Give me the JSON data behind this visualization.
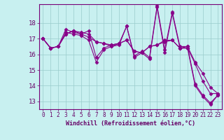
{
  "xlabel": "Windchill (Refroidissement éolien,°C)",
  "background_color": "#c8f0f0",
  "line_color": "#880088",
  "grid_color": "#99cccc",
  "x_values": [
    0,
    1,
    2,
    3,
    4,
    5,
    6,
    7,
    8,
    9,
    10,
    11,
    12,
    13,
    14,
    15,
    16,
    17,
    18,
    19,
    20,
    21,
    22,
    23
  ],
  "series": [
    [
      17.0,
      16.4,
      16.5,
      17.4,
      17.3,
      17.2,
      16.9,
      15.5,
      16.3,
      16.5,
      16.6,
      17.8,
      15.8,
      16.1,
      15.7,
      19.0,
      16.1,
      18.6,
      16.4,
      16.4,
      14.0,
      13.3,
      12.8,
      13.4
    ],
    [
      17.0,
      16.4,
      16.5,
      17.3,
      17.5,
      17.3,
      17.1,
      16.8,
      16.7,
      16.5,
      16.7,
      16.9,
      16.2,
      16.1,
      16.5,
      16.6,
      16.8,
      16.9,
      16.4,
      16.4,
      15.4,
      14.3,
      13.5,
      13.5
    ],
    [
      17.0,
      16.4,
      16.5,
      17.3,
      17.5,
      17.4,
      17.3,
      16.8,
      16.7,
      16.6,
      16.7,
      16.9,
      16.2,
      16.1,
      16.5,
      16.6,
      16.9,
      16.9,
      16.4,
      16.5,
      15.5,
      14.8,
      13.9,
      13.5
    ],
    [
      17.0,
      16.4,
      16.5,
      17.6,
      17.4,
      17.3,
      17.5,
      15.8,
      16.4,
      16.6,
      16.7,
      17.8,
      15.9,
      16.2,
      15.8,
      19.1,
      16.3,
      18.7,
      16.5,
      16.5,
      14.1,
      13.4,
      12.9,
      13.4
    ]
  ],
  "ylim": [
    12.5,
    19.2
  ],
  "yticks": [
    13,
    14,
    15,
    16,
    17,
    18
  ],
  "xticks": [
    0,
    1,
    2,
    3,
    4,
    5,
    6,
    7,
    8,
    9,
    10,
    11,
    12,
    13,
    14,
    15,
    16,
    17,
    18,
    19,
    20,
    21,
    22,
    23
  ],
  "marker": "D",
  "markersize": 2.5,
  "linewidth": 0.8,
  "tick_fontsize": 5.5,
  "xlabel_fontsize": 6.0
}
